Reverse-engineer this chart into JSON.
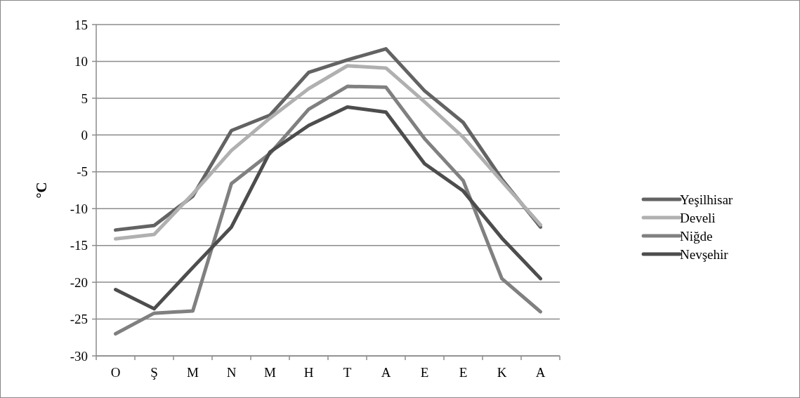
{
  "chart_data": {
    "type": "line",
    "ylabel": "°C",
    "categories": [
      "O",
      "Ş",
      "M",
      "N",
      "M",
      "H",
      "T",
      "A",
      "E",
      "E",
      "K",
      "A"
    ],
    "series": [
      {
        "name": "Yeşilhisar",
        "color": "#636363",
        "values": [
          -12.9,
          -12.3,
          -8.3,
          0.6,
          2.7,
          8.5,
          10.2,
          11.7,
          6.0,
          1.7,
          -6.0,
          -12.5
        ]
      },
      {
        "name": "Develi",
        "color": "#b0b0b0",
        "values": [
          -14.1,
          -13.5,
          -8.0,
          -2.1,
          2.3,
          6.3,
          9.4,
          9.1,
          4.5,
          -0.3,
          -6.3,
          -12.2
        ]
      },
      {
        "name": "Niğde",
        "color": "#808080",
        "values": [
          -27.0,
          -24.2,
          -23.9,
          -6.6,
          -2.5,
          3.5,
          6.6,
          6.5,
          -0.5,
          -6.2,
          -19.5,
          -24.0
        ]
      },
      {
        "name": "Nevşehir",
        "color": "#4d4d4d",
        "values": [
          -21.0,
          -23.6,
          -18.0,
          -12.5,
          -2.3,
          1.3,
          3.8,
          3.1,
          -3.9,
          -7.6,
          -14.0,
          -19.5
        ]
      }
    ],
    "ylim": [
      -30,
      15
    ],
    "yticks": [
      -30,
      -25,
      -20,
      -15,
      -10,
      -5,
      0,
      5,
      10,
      15
    ],
    "grid": "y",
    "legend": "right",
    "marker": "none",
    "line_style": "solid"
  }
}
